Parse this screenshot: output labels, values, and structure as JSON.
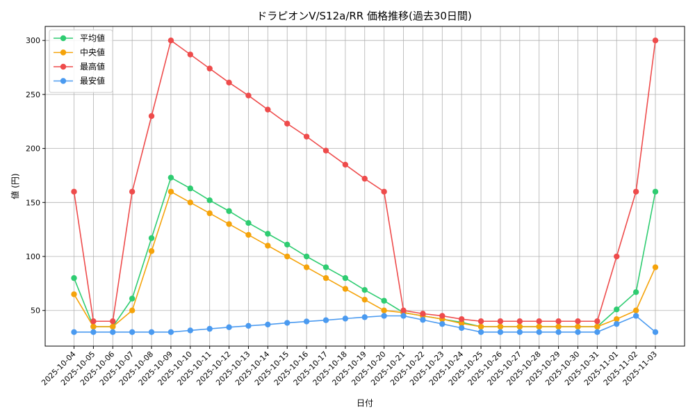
{
  "chart_data": {
    "type": "line",
    "title": "ドラピオンV/S12a/RR 価格推移(過去30日間)",
    "xlabel": "日付",
    "ylabel": "値 (円)",
    "ylim": [
      17,
      313
    ],
    "yticks": [
      50,
      100,
      150,
      200,
      250,
      300
    ],
    "grid": true,
    "legend_position": "top-left",
    "x": [
      "2025-10-04",
      "2025-10-05",
      "2025-10-06",
      "2025-10-07",
      "2025-10-08",
      "2025-10-09",
      "2025-10-10",
      "2025-10-11",
      "2025-10-12",
      "2025-10-13",
      "2025-10-14",
      "2025-10-15",
      "2025-10-16",
      "2025-10-17",
      "2025-10-18",
      "2025-10-19",
      "2025-10-20",
      "2025-10-21",
      "2025-10-22",
      "2025-10-23",
      "2025-10-24",
      "2025-10-25",
      "2025-10-26",
      "2025-10-27",
      "2025-10-28",
      "2025-10-29",
      "2025-10-30",
      "2025-10-31",
      "2025-11-01",
      "2025-11-02",
      "2025-11-03"
    ],
    "series": [
      {
        "name": "平均値",
        "color": "#2ecc71",
        "values": [
          80,
          35,
          35,
          61,
          117,
          173,
          163,
          152,
          142,
          131,
          121,
          111,
          100,
          90,
          80,
          69,
          59,
          48,
          45,
          42,
          39,
          35,
          35,
          35,
          35,
          35,
          35,
          35,
          51,
          67,
          160
        ]
      },
      {
        "name": "中央値",
        "color": "#f5a30a",
        "values": [
          65,
          35,
          35,
          50,
          105,
          160,
          150,
          140,
          130,
          120,
          110,
          100,
          90,
          80,
          70,
          60,
          50,
          48,
          45,
          42,
          38,
          35,
          35,
          35,
          35,
          35,
          35,
          35,
          42,
          50,
          90
        ]
      },
      {
        "name": "最高値",
        "color": "#ee4b4b",
        "values": [
          160,
          40,
          40,
          160,
          230,
          300,
          287,
          274,
          261,
          249,
          236,
          223,
          211,
          198,
          185,
          172,
          160,
          50,
          47,
          45,
          42,
          40,
          40,
          40,
          40,
          40,
          40,
          40,
          100,
          160,
          300
        ]
      },
      {
        "name": "最安値",
        "color": "#4a9af0",
        "values": [
          30,
          30,
          30,
          30,
          30,
          30,
          31.5,
          33,
          34.5,
          35.8,
          37,
          38.5,
          39.8,
          41,
          42.5,
          43.8,
          45,
          45,
          41.3,
          37.5,
          33.8,
          30,
          30,
          30,
          30,
          30,
          30,
          30,
          37.5,
          45,
          30
        ]
      }
    ]
  }
}
